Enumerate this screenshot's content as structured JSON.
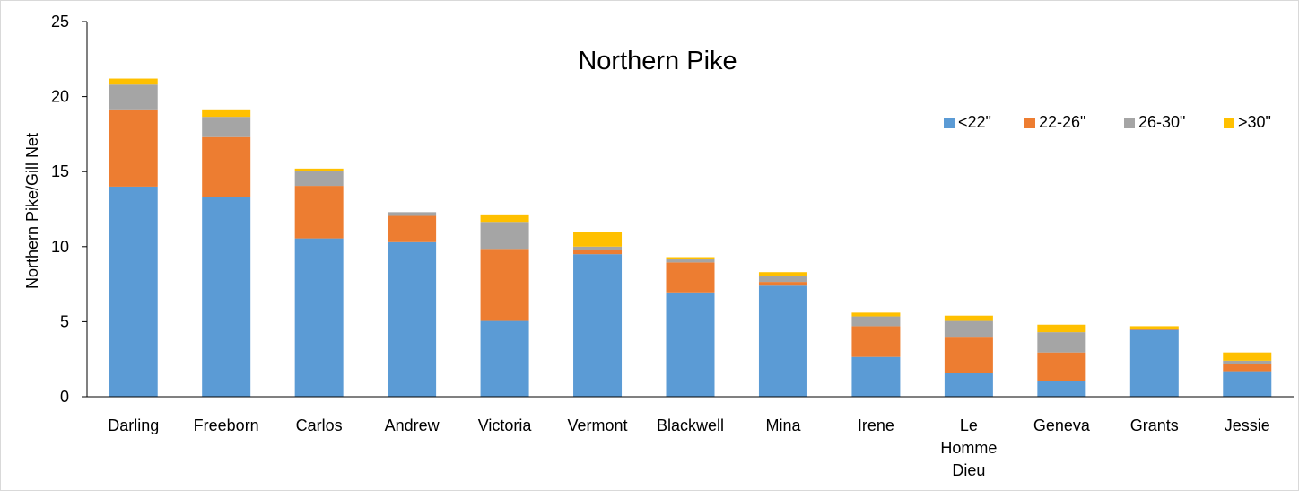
{
  "chart_data": {
    "type": "bar",
    "stacked": true,
    "title": "Northern Pike",
    "xlabel": "",
    "ylabel": "Northern Pike/Gill Net",
    "ylim": [
      0,
      25
    ],
    "yticks": [
      0,
      5,
      10,
      15,
      20,
      25
    ],
    "grid": false,
    "legend_position": "top-right",
    "categories": [
      "Darling",
      "Freeborn",
      "Carlos",
      "Andrew",
      "Victoria",
      "Vermont",
      "Blackwell",
      "Mina",
      "Irene",
      "Le Homme Dieu",
      "Geneva",
      "Grants",
      "Jessie"
    ],
    "series": [
      {
        "name": "<22\"",
        "color": "#5b9bd5",
        "values": [
          14.0,
          13.3,
          10.55,
          10.3,
          5.05,
          9.5,
          6.95,
          7.4,
          2.65,
          1.6,
          1.05,
          4.45,
          1.7
        ]
      },
      {
        "name": "22-26\"",
        "color": "#ed7d31",
        "values": [
          5.15,
          4.0,
          3.5,
          1.75,
          4.8,
          0.3,
          2.0,
          0.25,
          2.05,
          2.4,
          1.9,
          0.05,
          0.5
        ]
      },
      {
        "name": "26-30\"",
        "color": "#a5a5a5",
        "values": [
          1.65,
          1.35,
          1.0,
          0.25,
          1.8,
          0.2,
          0.2,
          0.4,
          0.65,
          1.05,
          1.35,
          0.0,
          0.2
        ]
      },
      {
        "name": ">30\"",
        "color": "#ffc000",
        "values": [
          0.4,
          0.5,
          0.15,
          0.0,
          0.5,
          1.0,
          0.15,
          0.25,
          0.25,
          0.35,
          0.5,
          0.2,
          0.55
        ]
      }
    ]
  }
}
